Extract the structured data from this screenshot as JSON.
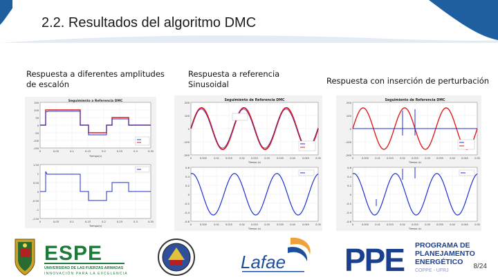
{
  "slide": {
    "title": "2.2. Resultados del algoritmo DMC",
    "page_number": "8/24"
  },
  "columns": [
    {
      "label": "Respuesta a diferentes amplitudes de escalón"
    },
    {
      "label": "Respuesta a referencia Sinusoidal"
    },
    {
      "label": "Respuesta con inserción de perturbación"
    }
  ],
  "colors": {
    "header_blue": "#1f5fa0",
    "reference_red": "#e01b1b",
    "output_blue": "#1c2fd1",
    "control_blue": "#1c2fd1"
  },
  "figures": {
    "step": {
      "top_title": "Seguimiento a Referencia DMC",
      "top_y_ticks": [
        "150",
        "100",
        "50",
        "0",
        "-50",
        "-100",
        "-150"
      ],
      "bottom_y_ticks": [
        "1.50",
        "1",
        "0.50",
        "0",
        "-0.50",
        "-1",
        "-1.50"
      ],
      "x_ticks": [
        "0",
        "0.05",
        "0.1",
        "0.15",
        "0.2",
        "0.25",
        "0.3",
        "0.35"
      ],
      "x_label": "Tiempo(s)"
    },
    "sine": {
      "top_title": "Seguimiento de Referencia DMC",
      "top_y_ticks": [
        "200",
        "100",
        "0",
        "-100",
        "-200"
      ],
      "bottom_y_ticks": [
        "0.6",
        "0.4",
        "0.2",
        "0",
        "-0.2",
        "-0.4",
        "-0.6"
      ],
      "x_ticks": [
        "0",
        "0.005",
        "0.01",
        "0.015",
        "0.02",
        "0.025",
        "0.03",
        "0.035",
        "0.04",
        "0.045",
        "0.05"
      ],
      "x_label": "Tiempo (s)"
    },
    "disturbance": {
      "top_title": "Seguimiento de Referencia DMC",
      "top_y_ticks": [
        "200",
        "100",
        "0",
        "-100",
        "-200"
      ],
      "bottom_y_ticks": [
        "0.6",
        "0.4",
        "0.2",
        "0",
        "-0.2",
        "-0.4",
        "-0.6"
      ],
      "x_ticks": [
        "0",
        "0.005",
        "0.01",
        "0.015",
        "0.02",
        "0.025",
        "0.03",
        "0.035",
        "0.04",
        "0.045",
        "0.05"
      ],
      "x_label": "Tiempo (s)"
    }
  },
  "logos": {
    "espe_name": "ESPE",
    "espe_sub": "UNIVERSIDAD DE LAS FUERZAS ARMADAS",
    "espe_motto": "INNOVACIÓN PARA LA EXCELENCIA",
    "lafae_name": "Lafae",
    "ppe_name": "PPE",
    "ppe_line1": "PROGRAMA DE",
    "ppe_line2": "PLANEJAMENTO",
    "ppe_line3": "ENERGÉTICO",
    "ppe_line4": "COPPE - UFRJ"
  }
}
